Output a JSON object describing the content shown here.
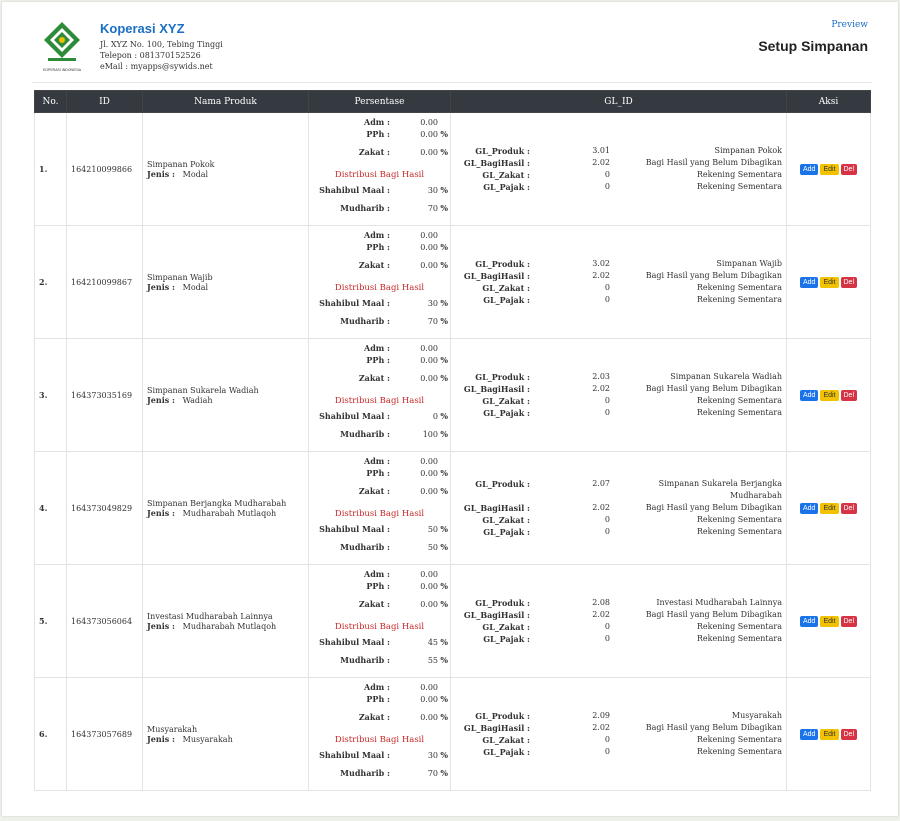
{
  "header": {
    "company_name": "Koperasi XYZ",
    "address": "Jl. XYZ No. 100, Tebing Tinggi",
    "phone": "Telepon : 081370152526",
    "email": "eMail : myapps@sywids.net",
    "logo_caption": "KOPERASI INDONESIA",
    "preview_label": "Preview",
    "page_title": "Setup Simpanan"
  },
  "table": {
    "columns": [
      "No.",
      "ID",
      "Nama Produk",
      "Persentase",
      "GL_ID",
      "Aksi"
    ],
    "labels": {
      "adm": "Adm :",
      "pph": "PPh :",
      "zakat": "Zakat :",
      "dist": "Distribusi Bagi Hasil",
      "shahibul": "Shahibul Maal :",
      "mudharib": "Mudharib :",
      "pct": "%",
      "jenis": "Jenis :",
      "gl_produk": "GL_Produk :",
      "gl_bagi": "GL_BagiHasil :",
      "gl_zakat": "GL_Zakat :",
      "gl_pajak": "GL_Pajak :",
      "add": "Add",
      "edit": "Edit",
      "del": "Del"
    },
    "rows": [
      {
        "no": "1.",
        "id": "164210099866",
        "nama": "Simpanan Pokok",
        "jenis": "Modal",
        "adm": "0.00",
        "pph": "0.00",
        "zakat": "0.00",
        "shahibul": "30",
        "mudharib": "70",
        "gl_produk": "3.01",
        "gl_produk_desc": "Simpanan Pokok",
        "gl_bagi": "2.02",
        "gl_bagi_desc": "Bagi Hasil yang Belum Dibagikan",
        "gl_zakat": "0",
        "gl_zakat_desc": "Rekening Sementara",
        "gl_pajak": "0",
        "gl_pajak_desc": "Rekening Sementara"
      },
      {
        "no": "2.",
        "id": "164210099867",
        "nama": "Simpanan Wajib",
        "jenis": "Modal",
        "adm": "0.00",
        "pph": "0.00",
        "zakat": "0.00",
        "shahibul": "30",
        "mudharib": "70",
        "gl_produk": "3.02",
        "gl_produk_desc": "Simpanan Wajib",
        "gl_bagi": "2.02",
        "gl_bagi_desc": "Bagi Hasil yang Belum Dibagikan",
        "gl_zakat": "0",
        "gl_zakat_desc": "Rekening Sementara",
        "gl_pajak": "0",
        "gl_pajak_desc": "Rekening Sementara"
      },
      {
        "no": "3.",
        "id": "164373035169",
        "nama": "Simpanan Sukarela Wadiah",
        "jenis": "Wadiah",
        "adm": "0.00",
        "pph": "0.00",
        "zakat": "0.00",
        "shahibul": "0",
        "mudharib": "100",
        "gl_produk": "2.03",
        "gl_produk_desc": "Simpanan Sukarela Wadiah",
        "gl_bagi": "2.02",
        "gl_bagi_desc": "Bagi Hasil yang Belum Dibagikan",
        "gl_zakat": "0",
        "gl_zakat_desc": "Rekening Sementara",
        "gl_pajak": "0",
        "gl_pajak_desc": "Rekening Sementara"
      },
      {
        "no": "4.",
        "id": "164373049829",
        "nama": "Simpanan Berjangka Mudharabah",
        "jenis": "Mudharabah Mutlaqoh",
        "adm": "0.00",
        "pph": "0.00",
        "zakat": "0.00",
        "shahibul": "50",
        "mudharib": "50",
        "gl_produk": "2.07",
        "gl_produk_desc": "Simpanan Sukarela Berjangka Mudharabah",
        "gl_bagi": "2.02",
        "gl_bagi_desc": "Bagi Hasil yang Belum Dibagikan",
        "gl_zakat": "0",
        "gl_zakat_desc": "Rekening Sementara",
        "gl_pajak": "0",
        "gl_pajak_desc": "Rekening Sementara"
      },
      {
        "no": "5.",
        "id": "164373056064",
        "nama": "Investasi Mudharabah Lainnya",
        "jenis": "Mudharabah Mutlaqoh",
        "adm": "0.00",
        "pph": "0.00",
        "zakat": "0.00",
        "shahibul": "45",
        "mudharib": "55",
        "gl_produk": "2.08",
        "gl_produk_desc": "Investasi Mudharabah Lainnya",
        "gl_bagi": "2.02",
        "gl_bagi_desc": "Bagi Hasil yang Belum Dibagikan",
        "gl_zakat": "0",
        "gl_zakat_desc": "Rekening Sementara",
        "gl_pajak": "0",
        "gl_pajak_desc": "Rekening Sementara"
      },
      {
        "no": "6.",
        "id": "164373057689",
        "nama": "Musyarakah",
        "jenis": "Musyarakah",
        "adm": "0.00",
        "pph": "0.00",
        "zakat": "0.00",
        "shahibul": "30",
        "mudharib": "70",
        "gl_produk": "2.09",
        "gl_produk_desc": "Musyarakah",
        "gl_bagi": "2.02",
        "gl_bagi_desc": "Bagi Hasil yang Belum Dibagikan",
        "gl_zakat": "0",
        "gl_zakat_desc": "Rekening Sementara",
        "gl_pajak": "0",
        "gl_pajak_desc": "Rekening Sementara"
      }
    ]
  },
  "colors": {
    "brand": "#1a6fc4",
    "header_bg": "#343a40",
    "add": "#1a73e8",
    "edit": "#f2c200",
    "del": "#d63344",
    "dist": "#c62828"
  }
}
